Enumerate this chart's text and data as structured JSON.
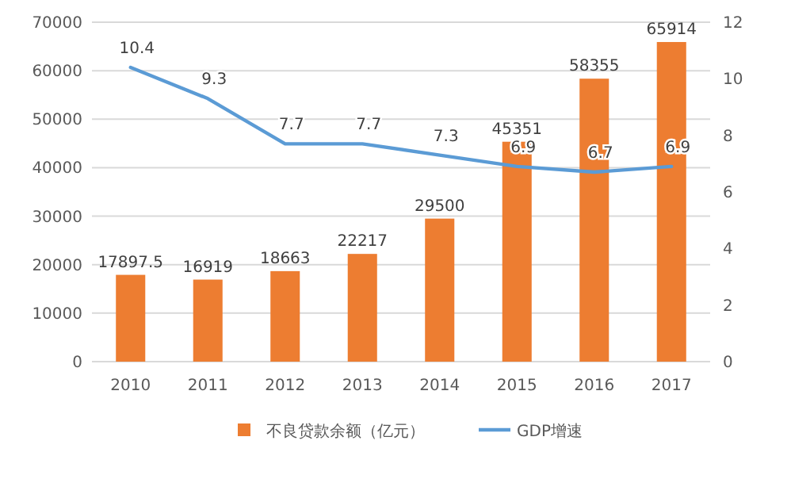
{
  "chart_data": {
    "type": "bar",
    "categories": [
      "2010",
      "2011",
      "2012",
      "2013",
      "2014",
      "2015",
      "2016",
      "2017"
    ],
    "series": [
      {
        "name": "不良贷款余额（亿元）",
        "color": "#ed7d31",
        "values": [
          17897.5,
          16919,
          18663,
          22217,
          29500,
          45351,
          58355,
          65914
        ]
      },
      {
        "name": "GDP增速",
        "type": "line",
        "axis": "y2",
        "color": "#5b9bd5",
        "values": [
          10.4,
          9.3,
          7.7,
          7.7,
          7.3,
          6.9,
          6.7,
          6.9
        ]
      }
    ],
    "ylim": [
      0,
      70000
    ],
    "yticks": [
      0,
      10000,
      20000,
      30000,
      40000,
      50000,
      60000,
      70000
    ],
    "y2lim": [
      0,
      12
    ],
    "y2ticks": [
      0,
      2,
      4,
      6,
      8,
      10,
      12
    ],
    "grid": "y",
    "legend": "bottom",
    "data_labels": true
  }
}
